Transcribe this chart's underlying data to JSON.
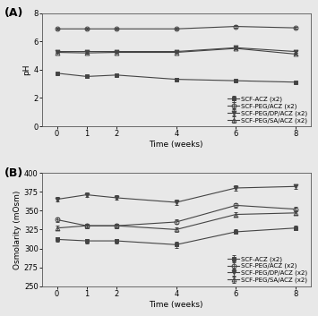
{
  "time_weeks": [
    0,
    1,
    2,
    4,
    6,
    8
  ],
  "panel_A": {
    "title": "(A)",
    "ylabel": "pH",
    "ylim": [
      0,
      8
    ],
    "yticks": [
      0,
      2,
      4,
      6,
      8
    ],
    "series": [
      {
        "label": "SCF-ACZ (x2)",
        "values": [
          3.75,
          3.52,
          3.62,
          3.32,
          3.22,
          3.12
        ],
        "yerr": [
          0.08,
          0.07,
          0.07,
          0.07,
          0.06,
          0.06
        ],
        "marker": "s",
        "fillstyle": "full"
      },
      {
        "label": "SCF-PEG/ACZ (x2)",
        "values": [
          6.88,
          6.88,
          6.88,
          6.88,
          7.05,
          6.95
        ],
        "yerr": [
          0.05,
          0.05,
          0.05,
          0.05,
          0.07,
          0.05
        ],
        "marker": "o",
        "fillstyle": "none"
      },
      {
        "label": "SCF-PEG/DP/ACZ (x2)",
        "values": [
          5.28,
          5.28,
          5.28,
          5.28,
          5.55,
          5.28
        ],
        "yerr": [
          0.07,
          0.06,
          0.06,
          0.06,
          0.08,
          0.06
        ],
        "marker": "v",
        "fillstyle": "full"
      },
      {
        "label": "SCF-PEG/SA/ACZ (x2)",
        "values": [
          5.22,
          5.18,
          5.22,
          5.22,
          5.5,
          5.1
        ],
        "yerr": [
          0.06,
          0.06,
          0.06,
          0.06,
          0.08,
          0.06
        ],
        "marker": "^",
        "fillstyle": "none"
      }
    ]
  },
  "panel_B": {
    "title": "(B)",
    "ylabel": "Osmolarity (mOsm)",
    "ylim": [
      250,
      400
    ],
    "yticks": [
      250,
      275,
      300,
      325,
      350,
      375,
      400
    ],
    "series": [
      {
        "label": "SCF-ACZ (x2)",
        "values": [
          312,
          310,
          310,
          305,
          322,
          327
        ],
        "yerr": [
          3,
          3,
          3,
          4,
          3,
          3
        ],
        "marker": "s",
        "fillstyle": "full"
      },
      {
        "label": "SCF-PEG/ACZ (x2)",
        "values": [
          338,
          330,
          330,
          335,
          357,
          352
        ],
        "yerr": [
          3,
          3,
          3,
          3,
          3,
          3
        ],
        "marker": "o",
        "fillstyle": "none"
      },
      {
        "label": "SCF-PEG/DP/ACZ (x2)",
        "values": [
          365,
          371,
          367,
          361,
          380,
          382
        ],
        "yerr": [
          3,
          3,
          3,
          3,
          3,
          3
        ],
        "marker": "v",
        "fillstyle": "full"
      },
      {
        "label": "SCF-PEG/SA/ACZ (x2)",
        "values": [
          327,
          330,
          330,
          325,
          345,
          347
        ],
        "yerr": [
          3,
          3,
          3,
          3,
          3,
          3
        ],
        "marker": "^",
        "fillstyle": "none"
      }
    ]
  },
  "xlabel": "Time (weeks)",
  "xticks": [
    0,
    1,
    2,
    4,
    6,
    8
  ],
  "xticklabels": [
    "0",
    "1",
    "2",
    "4",
    "6",
    "8"
  ],
  "line_color": "#444444",
  "background_color": "#e8e8e8",
  "plot_bg_color": "#e8e8e8",
  "legend_fontsize": 5.0,
  "label_fontsize": 6.5,
  "tick_fontsize": 6.0,
  "title_fontsize": 9,
  "markersize": 3.5,
  "linewidth": 0.8
}
